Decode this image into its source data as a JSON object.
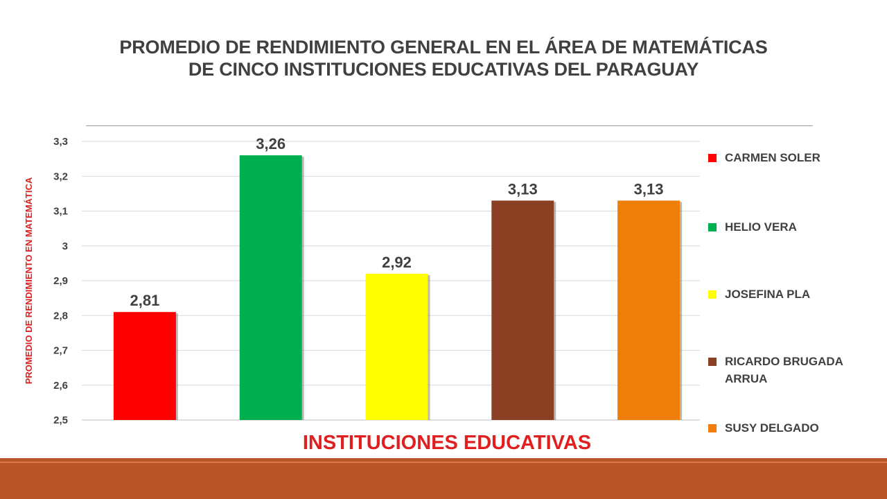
{
  "slide": {
    "title_line1": "PROMEDIO DE RENDIMIENTO GENERAL EN EL ÁREA DE MATEMÁTICAS",
    "title_line2": "DE CINCO INSTITUCIONES EDUCATIVAS DEL PARAGUAY",
    "footer_color": "#b8562a"
  },
  "chart_data": {
    "type": "bar",
    "title": "PROMEDIO DE RENDIMIENTO GENERAL EN EL ÁREA DE MATEMÁTICAS DE CINCO INSTITUCIONES EDUCATIVAS DEL PARAGUAY",
    "xlabel": "INSTITUCIONES EDUCATIVAS",
    "ylabel": "PROMEDIO DE RENDIMIENTO EN MATEMÁTICA",
    "ylim": [
      2.5,
      3.3
    ],
    "yticks": [
      2.5,
      2.6,
      2.7,
      2.8,
      2.9,
      3.0,
      3.1,
      3.2,
      3.3
    ],
    "ytick_labels": [
      "2,5",
      "2,6",
      "2,7",
      "2,8",
      "2,9",
      "3",
      "3,1",
      "3,2",
      "3,3"
    ],
    "grid": true,
    "legend_placement": "right",
    "categories": [
      "CARMEN SOLER",
      "HELIO VERA",
      "JOSEFINA PLA",
      "RICARDO BRUGADA ARRUA",
      "SUSY DELGADO"
    ],
    "values": [
      2.81,
      3.26,
      2.92,
      3.13,
      3.13
    ],
    "value_labels": [
      "2,81",
      "3,26",
      "2,92",
      "3,13",
      "3,13"
    ],
    "colors": [
      "#ff0000",
      "#00b050",
      "#ffff00",
      "#8b4023",
      "#f07f09"
    ],
    "axis_label_color": "#e02020"
  }
}
